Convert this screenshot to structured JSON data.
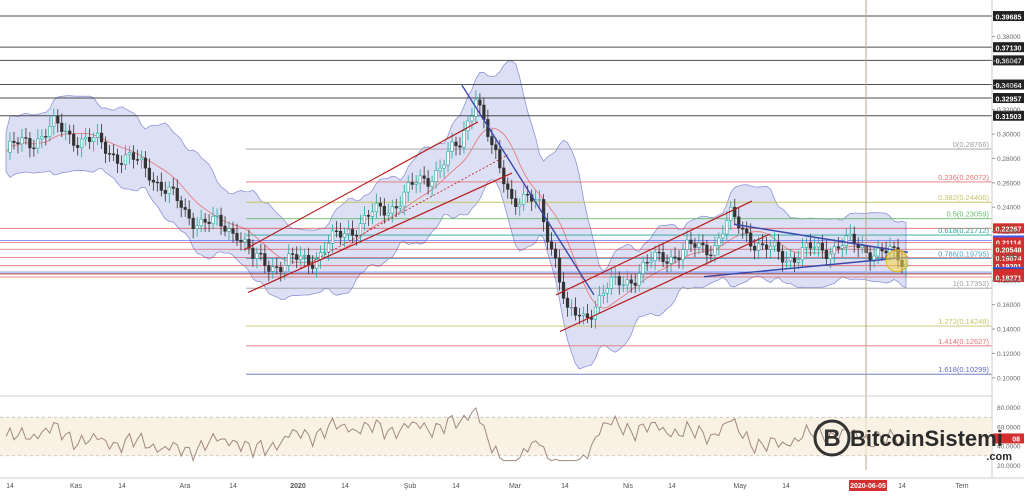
{
  "chart_data": {
    "type": "candlestick",
    "y_ticks": [
      "0.38000",
      "0.36000",
      "0.34000",
      "0.32000",
      "0.30000",
      "0.28000",
      "0.26000",
      "0.24000",
      "0.22000",
      "0.20000",
      "0.18000",
      "0.16000",
      "0.14000",
      "0.12000",
      "0.10000"
    ],
    "x_ticks": [
      "14",
      "Kas",
      "14",
      "Ara",
      "14",
      "2020",
      "14",
      "Şub",
      "14",
      "Mar",
      "14",
      "Nis",
      "14",
      "May",
      "14",
      "2020-06-05",
      "14",
      "Tem"
    ],
    "price_levels": [
      {
        "label": "0.39685",
        "color": "#222222"
      },
      {
        "label": "0.37130",
        "color": "#222222"
      },
      {
        "label": "0.36047",
        "color": "#222222"
      },
      {
        "label": "0.34064",
        "color": "#222222"
      },
      {
        "label": "0.32957",
        "color": "#222222"
      },
      {
        "label": "0.31503",
        "color": "#222222"
      },
      {
        "label": "0.22267",
        "color": "#d32f2f"
      },
      {
        "label": "0.21271",
        "color": "#3d5afe"
      },
      {
        "label": "0.21114",
        "color": "#d32f2f"
      },
      {
        "label": "0.20548",
        "color": "#d32f2f"
      },
      {
        "label": "0.19874",
        "color": "#d32f2f"
      },
      {
        "label": "0.19201",
        "color": "#d32f2f"
      },
      {
        "label": "0.18677",
        "color": "#3d5afe"
      },
      {
        "label": "0.18550",
        "color": "#333333"
      },
      {
        "label": "0.18513",
        "color": "#d32f2f"
      },
      {
        "label": "0.18271",
        "color": "#d32f2f"
      }
    ],
    "fib_levels": [
      {
        "label": "0(0.28766)",
        "color": "#9e9e9e"
      },
      {
        "label": "0.236(0.26072)",
        "color": "#e57373"
      },
      {
        "label": "0.382(0.24406)",
        "color": "#c5c56a"
      },
      {
        "label": "0.5(0.23059)",
        "color": "#66bb6a"
      },
      {
        "label": "0.618(0.21712)",
        "color": "#26a69a"
      },
      {
        "label": "0.786(0.19795)",
        "color": "#4fa3c7"
      },
      {
        "label": "1(0.17352)",
        "color": "#9e9e9e"
      },
      {
        "label": "1.272(0.14248)",
        "color": "#c5c56a"
      },
      {
        "label": "1.414(0.12627)",
        "color": "#e57373"
      },
      {
        "label": "1.618(0.10299)",
        "color": "#5c6bc0"
      }
    ],
    "rsi_ticks": [
      "80.0000",
      "60.0000",
      "40.0000",
      "20.0000"
    ],
    "rsi_marker": "08",
    "watermark": {
      "name": "BitcoinSistemi",
      "suffix": ".com"
    },
    "colors": {
      "up": "#26a69a",
      "down": "#333333",
      "bollinger": "#b3b9e6",
      "channel": "#b71c1c",
      "trend": "#3949ab",
      "rsi": "#a1887f",
      "highlight": "#f5d547"
    }
  }
}
